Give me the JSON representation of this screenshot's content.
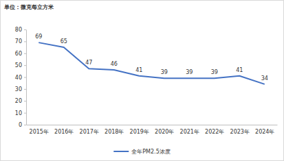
{
  "chart_data": {
    "type": "line",
    "ylabel": "单位：微克每立方米",
    "categories": [
      "2015年",
      "2016年",
      "2017年",
      "2018年",
      "2019年",
      "2020年",
      "2021年",
      "2022年",
      "2023年",
      "2024年"
    ],
    "series": [
      {
        "name": "全年PM2.5浓度",
        "color": "#4472c4",
        "values": [
          69,
          65,
          47,
          46,
          41,
          39,
          39,
          39,
          41,
          34
        ]
      }
    ],
    "ylim": [
      0,
      80
    ],
    "yticks": [
      0,
      10,
      20,
      30,
      40,
      50,
      60,
      70,
      80
    ],
    "grid": false,
    "data_labels": true,
    "legend": "bottom"
  }
}
